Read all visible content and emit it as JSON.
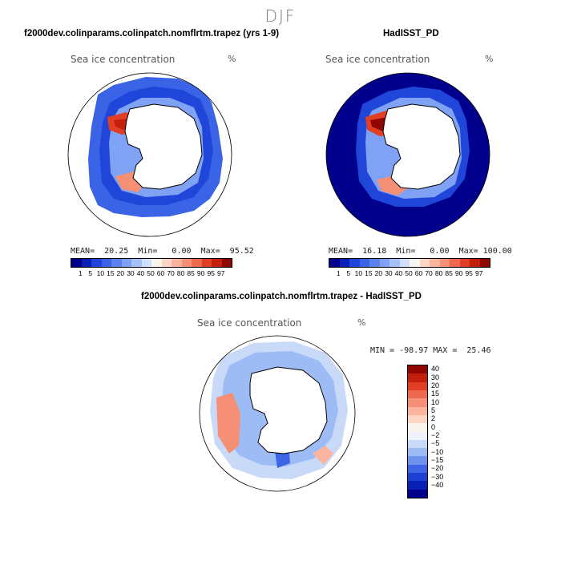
{
  "figure": {
    "season": "DJF",
    "variable": "Sea ice concentration",
    "units": "%"
  },
  "panels": {
    "model": {
      "title": "f2000dev.colinparams.colinpatch.nomflrtm.trapez (yrs 1-9)",
      "stats": "MEAN=  20.25  Min=   0.00  Max=  95.52"
    },
    "obs": {
      "title": "HadISST_PD",
      "stats": "MEAN=  16.18  Min=   0.00  Max= 100.00"
    },
    "diff": {
      "title": "f2000dev.colinparams.colinpatch.nomflrtm.trapez - HadISST_PD",
      "stats": "MIN = -98.97 MAX =  25.46"
    }
  },
  "colorbar_abs": {
    "labels": [
      "1",
      "5",
      "10",
      "15",
      "20",
      "30",
      "40",
      "50",
      "60",
      "70",
      "80",
      "85",
      "90",
      "95",
      "97"
    ],
    "colors": [
      "#00008c",
      "#0a1fb3",
      "#1f46d9",
      "#3a63e6",
      "#5a83ef",
      "#7fa2f5",
      "#a6c1f8",
      "#d0e0fb",
      "#f9f4ee",
      "#fdd5c4",
      "#fbb49e",
      "#f58f76",
      "#ed6a4e",
      "#e03f24",
      "#c2200d",
      "#900600"
    ]
  },
  "colorbar_diff": {
    "labels": [
      "40",
      "30",
      "20",
      "15",
      "10",
      "5",
      "2",
      "0",
      "−2",
      "−5",
      "−10",
      "−15",
      "−20",
      "−30",
      "−40"
    ],
    "colors": [
      "#900600",
      "#c2200d",
      "#e03f24",
      "#ed6a4e",
      "#f58f76",
      "#fbb49e",
      "#fdd5c4",
      "#f9f4ee",
      "#eef3fb",
      "#c8daf8",
      "#9dbcf5",
      "#6d93ef",
      "#3c66e3",
      "#1b3fd0",
      "#0a1fb3",
      "#00008c"
    ]
  }
}
